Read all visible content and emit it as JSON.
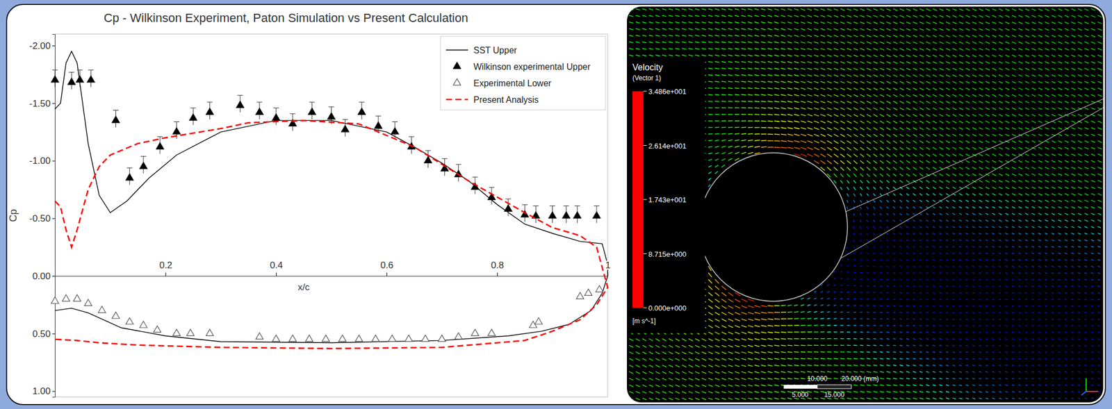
{
  "chart_data": [
    {
      "type": "line",
      "title": "Cp - Wilkinson Experiment, Paton Simulation vs Present Calculation",
      "x_label": "x/c",
      "y_label": "Cp",
      "xlim": [
        0,
        1
      ],
      "xticks": [
        0.2,
        0.4,
        0.6,
        0.8,
        1
      ],
      "ylim": [
        -2.1,
        1.05
      ],
      "yticks": [
        {
          "value": -2,
          "label": "-2.00"
        },
        {
          "value": -1.5,
          "label": "-1.50"
        },
        {
          "value": -1,
          "label": "-1.00"
        },
        {
          "value": -0.5,
          "label": "-0.50"
        },
        {
          "value": 0,
          "label": "0.00"
        },
        {
          "value": 0.5,
          "label": "0.50"
        },
        {
          "value": 1,
          "label": "1.00"
        }
      ],
      "legend": "top-right",
      "series": [
        {
          "name": "SST Upper",
          "type": "line",
          "color": "#000000",
          "line_style": "solid",
          "x": [
            0,
            0.01,
            0.02,
            0.03,
            0.04,
            0.05,
            0.06,
            0.08,
            0.1,
            0.13,
            0.17,
            0.22,
            0.3,
            0.4,
            0.5,
            0.6,
            0.65,
            0.7,
            0.75,
            0.8,
            0.85,
            0.9,
            0.95,
            0.99,
            1.0,
            1.0,
            0.99,
            0.97,
            0.93,
            0.88,
            0.82,
            0.7,
            0.5,
            0.3,
            0.2,
            0.12,
            0.06,
            0.03,
            0.0
          ],
          "values": [
            -1.45,
            -1.5,
            -1.85,
            -1.95,
            -1.85,
            -1.5,
            -1.15,
            -0.7,
            -0.55,
            -0.65,
            -0.85,
            -1.05,
            -1.25,
            -1.35,
            -1.35,
            -1.25,
            -1.12,
            -0.98,
            -0.82,
            -0.62,
            -0.45,
            -0.37,
            -0.3,
            -0.28,
            -0.1,
            0.0,
            0.15,
            0.3,
            0.42,
            0.48,
            0.52,
            0.56,
            0.58,
            0.57,
            0.52,
            0.45,
            0.32,
            0.28,
            0.3
          ]
        },
        {
          "name": "Wilkinson experimental Upper",
          "type": "scatter",
          "color": "#000000",
          "marker": "triangle",
          "x": [
            0.0,
            0.03,
            0.045,
            0.065,
            0.11,
            0.135,
            0.16,
            0.19,
            0.22,
            0.25,
            0.28,
            0.335,
            0.37,
            0.4,
            0.43,
            0.465,
            0.5,
            0.525,
            0.555,
            0.585,
            0.615,
            0.645,
            0.675,
            0.705,
            0.73,
            0.76,
            0.79,
            0.82,
            0.85,
            0.87,
            0.9,
            0.925,
            0.945,
            0.98
          ],
          "values": [
            -1.7,
            -1.68,
            -1.7,
            -1.7,
            -1.35,
            -0.85,
            -0.95,
            -1.12,
            -1.25,
            -1.37,
            -1.42,
            -1.48,
            -1.42,
            -1.37,
            -1.32,
            -1.42,
            -1.38,
            -1.27,
            -1.42,
            -1.3,
            -1.25,
            -1.12,
            -1.0,
            -0.93,
            -0.88,
            -0.77,
            -0.68,
            -0.58,
            -0.53,
            -0.52,
            -0.52,
            -0.52,
            -0.52,
            -0.52
          ],
          "errors": [
            0.06,
            0.06,
            0.06,
            0.06,
            0.06,
            0.06,
            0.06,
            0.06,
            0.06,
            0.06,
            0.06,
            0.06,
            0.06,
            0.06,
            0.06,
            0.06,
            0.06,
            0.06,
            0.06,
            0.06,
            0.06,
            0.06,
            0.06,
            0.06,
            0.06,
            0.06,
            0.06,
            0.06,
            0.06,
            0.06,
            0.06,
            0.06,
            0.06,
            0.06
          ]
        },
        {
          "name": "Experimental Lower",
          "type": "scatter",
          "color": "#555555",
          "marker": "triangle-open",
          "x": [
            0.0,
            0.02,
            0.04,
            0.06,
            0.085,
            0.11,
            0.135,
            0.16,
            0.185,
            0.22,
            0.245,
            0.28,
            0.37,
            0.4,
            0.43,
            0.46,
            0.49,
            0.52,
            0.55,
            0.58,
            0.61,
            0.64,
            0.67,
            0.7,
            0.73,
            0.76,
            0.79,
            0.865,
            0.875,
            0.95,
            0.965,
            0.985
          ],
          "values": [
            0.22,
            0.2,
            0.2,
            0.24,
            0.3,
            0.35,
            0.4,
            0.43,
            0.47,
            0.5,
            0.5,
            0.5,
            0.53,
            0.55,
            0.55,
            0.55,
            0.55,
            0.55,
            0.55,
            0.55,
            0.55,
            0.55,
            0.55,
            0.55,
            0.53,
            0.5,
            0.5,
            0.43,
            0.4,
            0.18,
            0.15,
            0.12
          ]
        },
        {
          "name": "Present Analysis",
          "type": "line",
          "color": "#ff0000",
          "line_style": "dashed",
          "x": [
            0,
            0.01,
            0.02,
            0.03,
            0.04,
            0.06,
            0.08,
            0.1,
            0.15,
            0.2,
            0.3,
            0.35,
            0.45,
            0.55,
            0.65,
            0.75,
            0.85,
            0.9,
            0.95,
            0.98,
            1.0,
            0.98,
            0.95,
            0.9,
            0.85,
            0.7,
            0.5,
            0.3,
            0.15,
            0.08,
            0.04,
            0.0
          ],
          "values": [
            -0.65,
            -0.6,
            -0.4,
            -0.25,
            -0.4,
            -0.75,
            -0.95,
            -1.05,
            -1.15,
            -1.2,
            -1.28,
            -1.33,
            -1.35,
            -1.32,
            -1.12,
            -0.82,
            -0.55,
            -0.42,
            -0.35,
            -0.25,
            0.1,
            0.25,
            0.38,
            0.48,
            0.56,
            0.62,
            0.63,
            0.62,
            0.6,
            0.58,
            0.56,
            0.55
          ]
        }
      ]
    },
    {
      "type": "vector_field",
      "title": "Velocity",
      "subtitle": "(Vector 1)",
      "unit_label": "[m s^-1]",
      "colorbar": {
        "range": [
          0,
          34.86
        ],
        "ticks": [
          {
            "value": 34.86,
            "label": "3.486e+001"
          },
          {
            "value": 26.14,
            "label": "2.614e+001"
          },
          {
            "value": 17.43,
            "label": "1.743e+001"
          },
          {
            "value": 8.715,
            "label": "8.715e+000"
          },
          {
            "value": 0,
            "label": "0.000e+000"
          }
        ]
      },
      "scale_bar_labels": [
        "10.000",
        "20.000 (mm)",
        "5.000",
        "15.000"
      ]
    }
  ]
}
